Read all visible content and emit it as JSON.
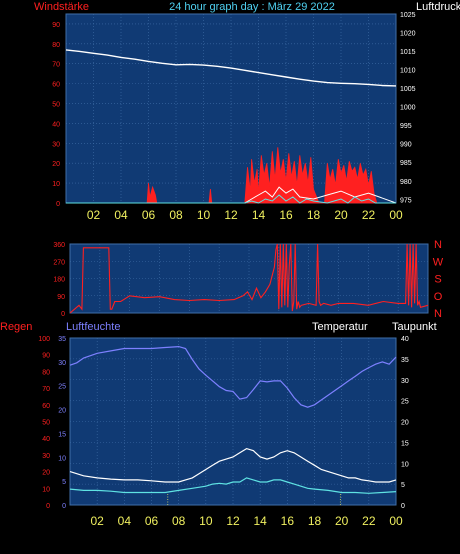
{
  "header": {
    "title": "24 hour graph day : März 29 2022",
    "left_label": "Windstärke",
    "right_label": "Luftdruck"
  },
  "colors": {
    "background": "#000000",
    "plot_bg": "#103a74",
    "grid": "#3f6ea8",
    "red": "#ff2020",
    "white": "#ffffff",
    "cyan": "#5fe3e3",
    "title_cyan": "#4fd0f0",
    "humidity_blue": "#7d80ff",
    "yellow_ticks": "#f0f060"
  },
  "chart_data": [
    {
      "name": "Wind / pressure",
      "type": "line",
      "x_tick_labels": [
        "02",
        "04",
        "06",
        "08",
        "10",
        "12",
        "14",
        "16",
        "18",
        "20",
        "22",
        "00"
      ],
      "left_axis_ticks": [
        "0",
        "10",
        "20",
        "30",
        "40",
        "50",
        "60",
        "70",
        "80",
        "90"
      ],
      "right_axis_ticks": [
        "975",
        "980",
        "985",
        "990",
        "995",
        "1000",
        "1005",
        "1010",
        "1015",
        "1020",
        "1025"
      ],
      "left_ylim": [
        0,
        95
      ],
      "right_ylim": [
        974,
        1025
      ],
      "xlim": [
        0,
        24
      ],
      "pressure_series": {
        "x": [
          0,
          1,
          2,
          3,
          4,
          5,
          6,
          7,
          8,
          9,
          10,
          11,
          12,
          13,
          14,
          15,
          16,
          17,
          18,
          19,
          20,
          21,
          22,
          23,
          24
        ],
        "values": [
          1015.3,
          1014.9,
          1014.4,
          1013.9,
          1013.3,
          1012.8,
          1012.2,
          1011.7,
          1011.3,
          1011.4,
          1011.2,
          1010.9,
          1010.4,
          1009.8,
          1009.2,
          1008.6,
          1008.0,
          1007.4,
          1006.9,
          1006.5,
          1006.3,
          1006.2,
          1006.0,
          1005.7,
          1005.6
        ]
      },
      "gust_series": {
        "x": [
          0,
          5.9,
          6.0,
          6.1,
          6.3,
          6.5,
          6.6,
          7.0,
          10.4,
          10.5,
          10.6,
          13.0,
          13.2,
          13.4,
          13.5,
          13.7,
          13.9,
          14.0,
          14.2,
          14.4,
          14.6,
          14.8,
          15.0,
          15.2,
          15.4,
          15.6,
          15.8,
          16.0,
          16.2,
          16.4,
          16.6,
          16.8,
          17.0,
          17.2,
          17.4,
          17.6,
          17.8,
          18.0,
          18.4,
          18.8,
          19.0,
          19.2,
          19.4,
          19.6,
          19.8,
          20.0,
          20.2,
          20.4,
          20.6,
          20.8,
          21.0,
          21.2,
          21.4,
          21.6,
          21.8,
          22.0,
          22.2,
          22.4,
          22.6,
          24
        ],
        "values": [
          0,
          0,
          10,
          3,
          8,
          4,
          0,
          0,
          0,
          7,
          0,
          0,
          18,
          6,
          22,
          10,
          17,
          5,
          24,
          14,
          20,
          8,
          26,
          12,
          28,
          15,
          22,
          11,
          25,
          13,
          21,
          9,
          24,
          14,
          20,
          10,
          23,
          7,
          0,
          0,
          20,
          12,
          17,
          9,
          22,
          15,
          19,
          11,
          21,
          16,
          18,
          12,
          20,
          14,
          17,
          9,
          16,
          5,
          0,
          0
        ]
      },
      "mean_series": {
        "x": [
          0,
          13.0,
          13.5,
          14.0,
          14.5,
          15.0,
          15.5,
          16.0,
          16.5,
          17.0,
          17.5,
          18.0,
          19.0,
          19.5,
          20.0,
          20.5,
          21.0,
          21.5,
          22.0,
          22.5,
          24
        ],
        "values": [
          0,
          0,
          1,
          0,
          2,
          1,
          4,
          1,
          3,
          0,
          2,
          1,
          0,
          1,
          2,
          0,
          3,
          1,
          2,
          0,
          0
        ]
      },
      "calm_series": {
        "x": [
          0,
          13.0,
          13.5,
          14.0,
          14.5,
          15.0,
          15.5,
          16.0,
          16.5,
          17.0,
          18.0,
          19.0,
          20.0,
          21.0,
          22.0,
          24
        ],
        "values": [
          0,
          0,
          2,
          4,
          6,
          3,
          8,
          5,
          7,
          3,
          2,
          4,
          6,
          3,
          5,
          0
        ]
      }
    },
    {
      "name": "Wind direction",
      "type": "line",
      "left_axis_ticks": [
        "0",
        "90",
        "180",
        "270",
        "360"
      ],
      "right_axis_ticks": [
        "N",
        "O",
        "S",
        "W",
        "N"
      ],
      "ylim": [
        0,
        360
      ],
      "xlim": [
        0,
        24
      ],
      "series": {
        "x": [
          0,
          0.3,
          0.6,
          0.8,
          0.9,
          1.0,
          1.1,
          2.6,
          2.7,
          2.8,
          3.0,
          3.4,
          4.0,
          5.0,
          6.0,
          7.0,
          8.0,
          9.0,
          10.0,
          11.0,
          11.6,
          11.9,
          12.2,
          12.5,
          12.8,
          13.1,
          13.4,
          13.7,
          13.8,
          13.9,
          14.0,
          14.1,
          14.2,
          14.3,
          14.4,
          14.5,
          14.6,
          14.7,
          14.8,
          14.9,
          15.0,
          15.1,
          15.2,
          15.3,
          15.4,
          15.5,
          16.0,
          16.5,
          16.6,
          16.7,
          16.8,
          17.0,
          17.5,
          18.0,
          19.0,
          20.0,
          21.0,
          22.0,
          22.5,
          22.6,
          22.7,
          22.8,
          22.9,
          23.0,
          23.1,
          23.2,
          23.3,
          23.4,
          23.5,
          24
        ],
        "values": [
          0,
          20,
          40,
          20,
          340,
          340,
          340,
          340,
          20,
          20,
          60,
          60,
          90,
          80,
          85,
          70,
          65,
          70,
          65,
          70,
          90,
          110,
          70,
          130,
          80,
          110,
          150,
          240,
          330,
          360,
          20,
          360,
          30,
          360,
          40,
          360,
          30,
          250,
          360,
          10,
          60,
          360,
          20,
          60,
          30,
          40,
          50,
          40,
          360,
          60,
          40,
          50,
          40,
          50,
          50,
          40,
          60,
          50,
          50,
          360,
          40,
          360,
          30,
          360,
          50,
          360,
          40,
          60,
          30,
          40
        ]
      }
    },
    {
      "name": "Humidity / temperature",
      "type": "line",
      "labels": {
        "rain": "Regen",
        "humidity": "Luftfeuchte",
        "temperature": "Temperatur",
        "dewpoint": "Taupunkt"
      },
      "x_tick_labels": [
        "02",
        "04",
        "06",
        "08",
        "10",
        "12",
        "14",
        "16",
        "18",
        "20",
        "22",
        "00"
      ],
      "rain_axis_ticks": [
        "0",
        "10",
        "20",
        "30",
        "40",
        "50",
        "60",
        "70",
        "80",
        "90",
        "100"
      ],
      "humidity_axis_ticks": [
        "0",
        "5",
        "10",
        "15",
        "20",
        "25",
        "30",
        "35"
      ],
      "temp_axis_ticks": [
        "0",
        "5",
        "10",
        "15",
        "20",
        "25",
        "30",
        "35",
        "40"
      ],
      "temp_ylim": [
        0,
        40
      ],
      "xlim": [
        0,
        24
      ],
      "humidity_series": {
        "x": [
          0,
          0.5,
          1,
          2,
          3,
          4,
          5,
          6,
          7,
          8,
          8.5,
          9,
          9.5,
          10,
          10.5,
          11,
          11.5,
          12,
          12.5,
          13,
          13.5,
          14,
          14.5,
          15,
          15.5,
          16,
          16.5,
          17,
          17.5,
          18,
          18.5,
          19,
          19.5,
          20,
          20.5,
          21,
          21.5,
          22,
          22.5,
          23,
          23.5,
          24
        ],
        "values": [
          29.3,
          29.8,
          30.8,
          31.8,
          32.3,
          32.8,
          32.8,
          32.8,
          33.0,
          33.2,
          32.8,
          30.5,
          28.5,
          27.2,
          26.0,
          24.8,
          24.0,
          23.8,
          22.2,
          22.5,
          24.2,
          26.0,
          25.8,
          26.0,
          26.0,
          24.5,
          22.5,
          21.0,
          20.5,
          21.0,
          22.0,
          23.0,
          24.0,
          25.0,
          26.0,
          27.0,
          28.0,
          28.8,
          29.5,
          30.0,
          29.5,
          31.0
        ]
      },
      "temperature_series": {
        "x": [
          0,
          1,
          2,
          3,
          4,
          5,
          6,
          7,
          8,
          8.5,
          9,
          9.5,
          10,
          10.5,
          11,
          11.5,
          12,
          12.5,
          13,
          13.5,
          14,
          14.5,
          15,
          15.5,
          16,
          16.5,
          17,
          17.5,
          18,
          18.5,
          19,
          19.5,
          20,
          20.5,
          21,
          21.5,
          22,
          22.5,
          23,
          23.5,
          24
        ],
        "values": [
          8.0,
          7.0,
          6.5,
          6.2,
          6.0,
          6.0,
          5.8,
          5.5,
          5.5,
          6.0,
          6.5,
          7.5,
          8.5,
          9.5,
          10.5,
          11.0,
          11.5,
          12.5,
          13.5,
          13.0,
          11.5,
          11.0,
          11.5,
          12.5,
          13.0,
          12.5,
          11.5,
          10.5,
          9.5,
          8.5,
          8.0,
          7.5,
          7.0,
          6.5,
          6.5,
          6.0,
          5.8,
          5.5,
          5.5,
          5.5,
          6.0
        ]
      },
      "dewpoint_series": {
        "x": [
          0,
          1,
          2,
          3,
          4,
          5,
          6,
          7,
          8,
          9,
          10,
          10.5,
          11,
          11.5,
          12,
          12.5,
          13,
          13.5,
          14,
          14.5,
          15,
          15.5,
          16,
          16.5,
          17,
          17.5,
          18,
          19,
          20,
          21,
          22,
          23,
          24
        ],
        "values": [
          3.8,
          3.5,
          3.5,
          3.3,
          3.0,
          3.0,
          3.0,
          3.0,
          3.5,
          4.0,
          4.5,
          5.0,
          5.2,
          5.0,
          5.5,
          5.5,
          6.5,
          6.0,
          5.5,
          5.5,
          6.0,
          6.0,
          5.5,
          5.0,
          4.5,
          4.0,
          3.8,
          3.5,
          3.0,
          3.0,
          2.8,
          3.0,
          3.2
        ]
      }
    }
  ]
}
